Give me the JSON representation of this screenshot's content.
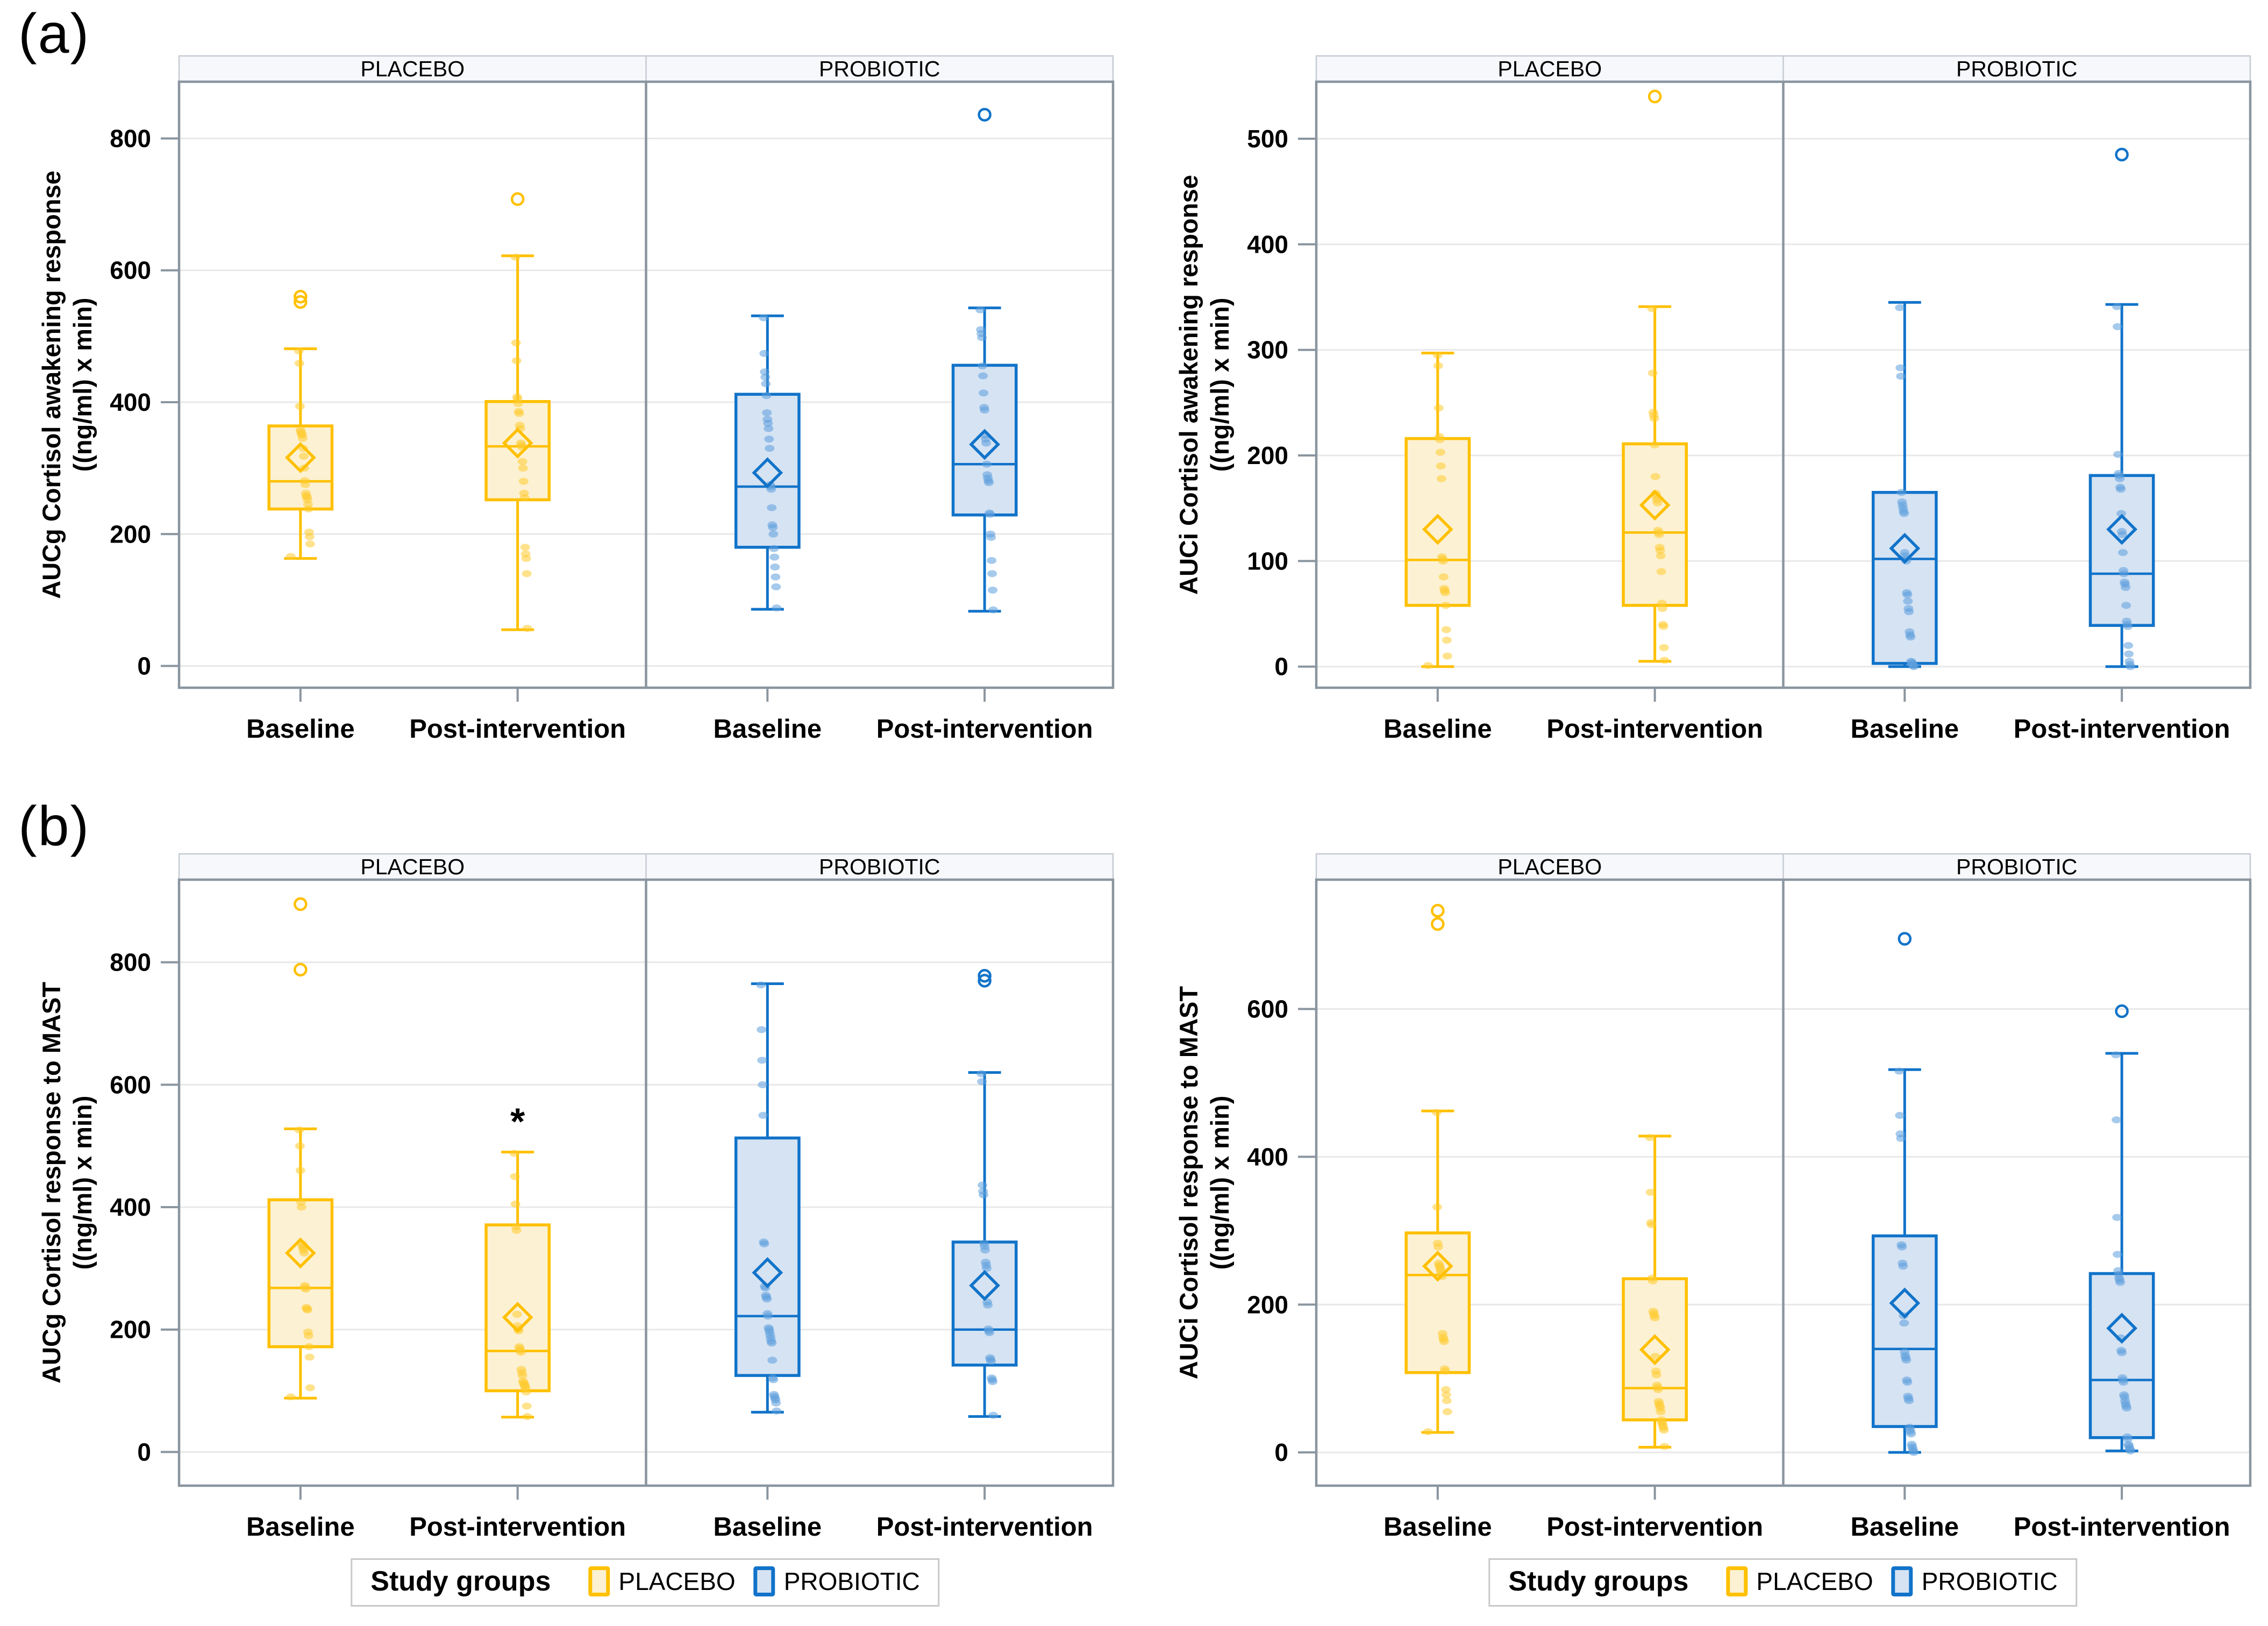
{
  "page": {
    "panel_a_label": "(a)",
    "panel_b_label": "(b)"
  },
  "legend": {
    "title": "Study groups",
    "items": [
      {
        "label": "PLACEBO",
        "group": "placebo"
      },
      {
        "label": "PROBIOTIC",
        "group": "probiotic"
      }
    ]
  },
  "colors": {
    "placebo_border": "#FFC000",
    "placebo_fill": "#FCF1D2",
    "placebo_point": "#FFCB2E",
    "probiotic_border": "#1173C9",
    "probiotic_fill": "#D5E3F3",
    "probiotic_point": "#5C9EDD",
    "grid": "#E8E8E8",
    "frame": "#8A959F",
    "header_bg": "#F7F8FC",
    "header_border": "#C6CAD2",
    "text": "#000000"
  },
  "facets": [
    "PLACEBO",
    "PROBIOTIC"
  ],
  "categories": [
    "Baseline",
    "Post-intervention"
  ],
  "chart_data": [
    {
      "id": "aucg_awakening",
      "type": "box",
      "ylabel_line1": "AUCg Cortisol awakening response",
      "ylabel_line2": "((ng/ml) x min)",
      "yticks": [
        0,
        200,
        400,
        600,
        800
      ],
      "ylim": [
        -33,
        886
      ],
      "grid": true,
      "groups": [
        {
          "facet": "PLACEBO",
          "category": "Baseline",
          "group": "placebo",
          "whisker_low": 163,
          "q1": 238,
          "median": 280,
          "q3": 364,
          "whisker_high": 481,
          "mean": 316,
          "outliers": [
            552,
            560
          ],
          "points": [
            166,
            185,
            196,
            203,
            238,
            245,
            252,
            256,
            258,
            262,
            275,
            281,
            300,
            318,
            330,
            345,
            350,
            352,
            355,
            358,
            394,
            459,
            478
          ]
        },
        {
          "facet": "PLACEBO",
          "category": "Post-intervention",
          "group": "placebo",
          "whisker_low": 55,
          "q1": 252,
          "median": 333,
          "q3": 401,
          "whisker_high": 622,
          "mean": 338,
          "outliers": [
            708
          ],
          "points": [
            57,
            140,
            163,
            170,
            180,
            255,
            262,
            280,
            300,
            310,
            332,
            335,
            338,
            360,
            365,
            383,
            386,
            398,
            405,
            408,
            463,
            490,
            620
          ]
        },
        {
          "facet": "PROBIOTIC",
          "category": "Baseline",
          "group": "probiotic",
          "whisker_low": 86,
          "q1": 180,
          "median": 272,
          "q3": 412,
          "whisker_high": 531,
          "mean": 293,
          "outliers": [],
          "points": [
            88,
            120,
            135,
            150,
            165,
            178,
            200,
            210,
            214,
            240,
            268,
            272,
            275,
            330,
            344,
            360,
            368,
            374,
            384,
            410,
            428,
            438,
            446,
            474,
            528
          ]
        },
        {
          "facet": "PROBIOTIC",
          "category": "Post-intervention",
          "group": "probiotic",
          "whisker_low": 83,
          "q1": 229,
          "median": 306,
          "q3": 456,
          "whisker_high": 543,
          "mean": 336,
          "outliers": [
            836
          ],
          "points": [
            85,
            115,
            140,
            160,
            195,
            200,
            230,
            232,
            278,
            281,
            285,
            290,
            306,
            338,
            344,
            350,
            388,
            392,
            414,
            440,
            455,
            498,
            504,
            510,
            540
          ]
        }
      ]
    },
    {
      "id": "auci_awakening",
      "type": "box",
      "ylabel_line1": "AUCi Cortisol awakening response",
      "ylabel_line2": "((ng/ml) x min)",
      "yticks": [
        0,
        100,
        200,
        300,
        400,
        500
      ],
      "ylim": [
        -20,
        554
      ],
      "grid": true,
      "groups": [
        {
          "facet": "PLACEBO",
          "category": "Baseline",
          "group": "placebo",
          "whisker_low": 0,
          "q1": 58,
          "median": 101,
          "q3": 216,
          "whisker_high": 297,
          "mean": 130,
          "outliers": [],
          "points": [
            1,
            10,
            25,
            35,
            58,
            70,
            72,
            74,
            85,
            100,
            102,
            104,
            178,
            190,
            203,
            215,
            218,
            245,
            285,
            295
          ]
        },
        {
          "facet": "PLACEBO",
          "category": "Post-intervention",
          "group": "placebo",
          "whisker_low": 5,
          "q1": 58,
          "median": 127,
          "q3": 211,
          "whisker_high": 341,
          "mean": 153,
          "outliers": [
            540
          ],
          "points": [
            6,
            18,
            38,
            40,
            55,
            60,
            90,
            105,
            110,
            113,
            125,
            127,
            129,
            155,
            158,
            161,
            164,
            180,
            210,
            235,
            238,
            241,
            278,
            339
          ]
        },
        {
          "facet": "PROBIOTIC",
          "category": "Baseline",
          "group": "probiotic",
          "whisker_low": 0,
          "q1": 3,
          "median": 102,
          "q3": 165,
          "whisker_high": 345,
          "mean": 112,
          "outliers": [],
          "points": [
            0,
            1,
            2,
            3,
            4,
            5,
            28,
            30,
            33,
            52,
            55,
            62,
            68,
            70,
            100,
            102,
            105,
            108,
            145,
            147,
            150,
            153,
            156,
            165,
            275,
            283,
            340
          ]
        },
        {
          "facet": "PROBIOTIC",
          "category": "Post-intervention",
          "group": "probiotic",
          "whisker_low": 0,
          "q1": 39,
          "median": 88,
          "q3": 181,
          "whisker_high": 343,
          "mean": 130,
          "outliers": [
            485
          ],
          "points": [
            0,
            2,
            5,
            12,
            20,
            38,
            40,
            43,
            58,
            75,
            78,
            80,
            88,
            91,
            108,
            125,
            128,
            145,
            168,
            170,
            178,
            181,
            183,
            201,
            322,
            341
          ]
        }
      ]
    },
    {
      "id": "aucg_mast",
      "type": "box",
      "ylabel_line1": "AUCg Cortisol response to MAST",
      "ylabel_line2": "((ng/ml) x min)",
      "yticks": [
        0,
        200,
        400,
        600,
        800
      ],
      "ylim": [
        -55,
        935
      ],
      "grid": true,
      "groups": [
        {
          "facet": "PLACEBO",
          "category": "Baseline",
          "group": "placebo",
          "whisker_low": 88,
          "q1": 172,
          "median": 268,
          "q3": 412,
          "whisker_high": 528,
          "mean": 325,
          "outliers": [
            788,
            895
          ],
          "points": [
            90,
            105,
            155,
            172,
            190,
            196,
            232,
            234,
            236,
            266,
            269,
            272,
            325,
            330,
            333,
            336,
            340,
            400,
            408,
            460,
            500,
            526
          ]
        },
        {
          "facet": "PLACEBO",
          "category": "Post-intervention",
          "group": "placebo",
          "whisker_low": 57,
          "q1": 100,
          "median": 165,
          "q3": 371,
          "whisker_high": 490,
          "mean": 220,
          "outliers": [],
          "annotation": {
            "text": "*",
            "value": 540
          },
          "points": [
            58,
            75,
            98,
            104,
            107,
            109,
            111,
            113,
            116,
            125,
            130,
            135,
            163,
            166,
            169,
            172,
            198,
            201,
            206,
            225,
            362,
            368,
            405,
            450,
            488
          ]
        },
        {
          "facet": "PROBIOTIC",
          "category": "Baseline",
          "group": "probiotic",
          "whisker_low": 65,
          "q1": 125,
          "median": 222,
          "q3": 513,
          "whisker_high": 765,
          "mean": 293,
          "outliers": [],
          "points": [
            67,
            80,
            85,
            88,
            91,
            94,
            118,
            121,
            150,
            178,
            181,
            186,
            191,
            196,
            200,
            203,
            222,
            226,
            250,
            253,
            256,
            268,
            271,
            340,
            343,
            550,
            600,
            640,
            690,
            763
          ]
        },
        {
          "facet": "PROBIOTIC",
          "category": "Post-intervention",
          "group": "probiotic",
          "whisker_low": 58,
          "q1": 142,
          "median": 200,
          "q3": 343,
          "whisker_high": 620,
          "mean": 272,
          "outliers": [
            770,
            778
          ],
          "points": [
            60,
            115,
            118,
            121,
            148,
            151,
            154,
            195,
            198,
            201,
            240,
            245,
            300,
            305,
            310,
            330,
            336,
            341,
            420,
            426,
            436,
            605,
            618
          ]
        }
      ]
    },
    {
      "id": "auci_mast",
      "type": "box",
      "ylabel_line1": "AUCi Cortisol response to MAST",
      "ylabel_line2": "((ng/ml) x min)",
      "yticks": [
        0,
        200,
        400,
        600
      ],
      "ylim": [
        -45,
        775
      ],
      "grid": true,
      "groups": [
        {
          "facet": "PLACEBO",
          "category": "Baseline",
          "group": "placebo",
          "whisker_low": 27,
          "q1": 108,
          "median": 240,
          "q3": 297,
          "whisker_high": 462,
          "mean": 252,
          "outliers": [
            715,
            733
          ],
          "points": [
            28,
            55,
            70,
            78,
            85,
            110,
            113,
            150,
            153,
            156,
            161,
            238,
            241,
            245,
            248,
            251,
            253,
            256,
            278,
            283,
            332,
            460
          ]
        },
        {
          "facet": "PLACEBO",
          "category": "Post-intervention",
          "group": "placebo",
          "whisker_low": 7,
          "q1": 44,
          "median": 87,
          "q3": 235,
          "whisker_high": 428,
          "mean": 139,
          "outliers": [],
          "points": [
            8,
            30,
            33,
            36,
            39,
            41,
            44,
            55,
            60,
            63,
            66,
            69,
            85,
            88,
            91,
            105,
            110,
            130,
            182,
            185,
            188,
            191,
            232,
            236,
            308,
            311,
            352,
            426
          ]
        },
        {
          "facet": "PROBIOTIC",
          "category": "Baseline",
          "group": "probiotic",
          "whisker_low": 0,
          "q1": 35,
          "median": 140,
          "q3": 293,
          "whisker_high": 518,
          "mean": 202,
          "outliers": [
            695
          ],
          "points": [
            0,
            2,
            5,
            8,
            11,
            25,
            28,
            31,
            34,
            70,
            73,
            76,
            95,
            98,
            125,
            128,
            131,
            136,
            175,
            185,
            252,
            256,
            278,
            281,
            425,
            431,
            456,
            516
          ]
        },
        {
          "facet": "PROBIOTIC",
          "category": "Post-intervention",
          "group": "probiotic",
          "whisker_low": 2,
          "q1": 20,
          "median": 98,
          "q3": 242,
          "whisker_high": 540,
          "mean": 168,
          "outliers": [
            597
          ],
          "points": [
            2,
            4,
            6,
            9,
            11,
            18,
            21,
            60,
            63,
            66,
            70,
            75,
            78,
            95,
            98,
            101,
            135,
            138,
            155,
            230,
            233,
            236,
            241,
            246,
            268,
            318,
            450,
            538
          ]
        }
      ]
    }
  ]
}
